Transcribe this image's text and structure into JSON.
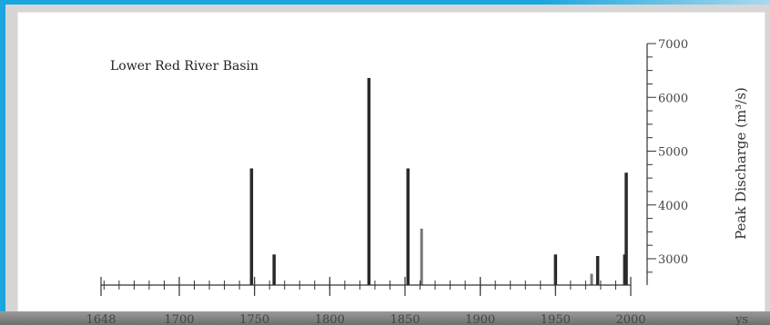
{
  "chart_data": {
    "type": "bar",
    "title": "Lower Red River Basin",
    "xlabel": "",
    "ylabel": "Peak Discharge (m³/s)",
    "x_ticks": [
      1648,
      1700,
      1750,
      1800,
      1850,
      1900,
      1950,
      2000
    ],
    "x_tick_labels": [
      "1648",
      "1700",
      "1750",
      "1800",
      "1850",
      "1900",
      "1950",
      "2000"
    ],
    "y_ticks": [
      3000,
      4000,
      5000,
      6000,
      7000
    ],
    "y_tick_labels": [
      "3000",
      "4000",
      "5000",
      "6000",
      "7000"
    ],
    "xlim": [
      1648,
      2000
    ],
    "ylim": [
      2500,
      7000
    ],
    "x": [
      1748,
      1763,
      1826,
      1852,
      1861,
      1950,
      1974,
      1978,
      1996,
      1997
    ],
    "values": [
      4680,
      3080,
      6360,
      4680,
      3560,
      3080,
      2720,
      3050,
      3080,
      4600
    ],
    "grid": false,
    "cutoff_label": "ys"
  }
}
